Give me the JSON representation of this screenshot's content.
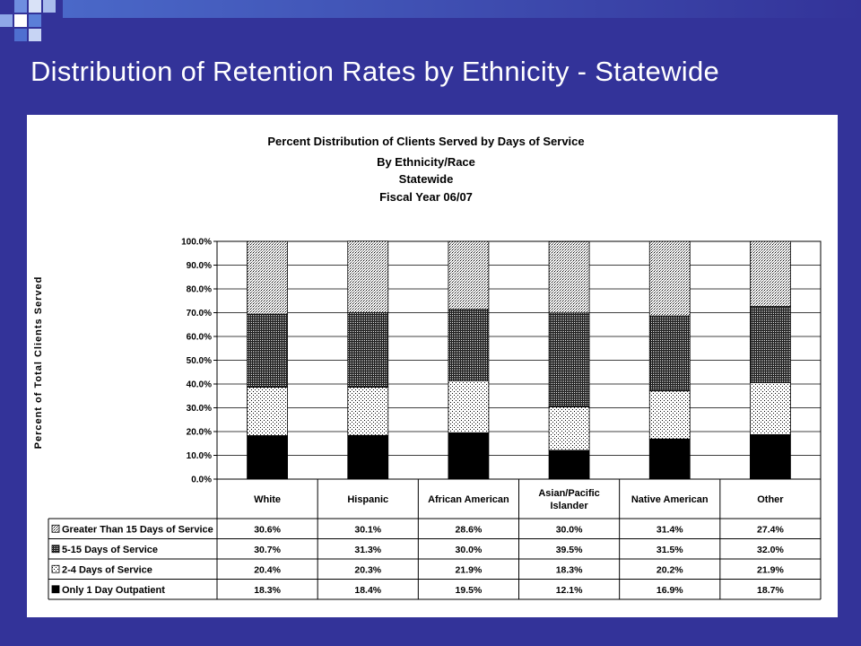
{
  "slide": {
    "title": "Distribution of Retention Rates by Ethnicity - Statewide",
    "colors": {
      "background": "#333399",
      "title_text": "#ffffff",
      "accent": "#5b7fd8"
    }
  },
  "chart_data": {
    "type": "bar",
    "stacked": true,
    "title": [
      "Percent Distribution of Clients Served by Days of Service",
      "By Ethnicity/Race",
      "Statewide",
      "Fiscal Year 06/07"
    ],
    "xlabel": "",
    "ylabel": "Percent of Total Clients Served",
    "ylim": [
      0,
      100
    ],
    "y_ticks": [
      "0.0%",
      "10.0%",
      "20.0%",
      "30.0%",
      "40.0%",
      "50.0%",
      "60.0%",
      "70.0%",
      "80.0%",
      "90.0%",
      "100.0%"
    ],
    "grid": true,
    "legend_placement": "data-table",
    "categories": [
      [
        "White"
      ],
      [
        "Hispanic"
      ],
      [
        "African American"
      ],
      [
        "Asian/Pacific",
        "Islander"
      ],
      [
        "Native American"
      ],
      [
        "Other"
      ]
    ],
    "series": [
      {
        "name": "Only 1 Day Outpatient",
        "pattern": "solid",
        "values": [
          18.3,
          18.4,
          19.5,
          12.1,
          16.9,
          18.7
        ],
        "labels": [
          "18.3%",
          "18.4%",
          "19.5%",
          "12.1%",
          "16.9%",
          "18.7%"
        ]
      },
      {
        "name": "2-4 Days of Service",
        "pattern": "sparse-dots",
        "values": [
          20.4,
          20.3,
          21.9,
          18.3,
          20.2,
          21.9
        ],
        "labels": [
          "20.4%",
          "20.3%",
          "21.9%",
          "18.3%",
          "20.2%",
          "21.9%"
        ]
      },
      {
        "name": "5-15 Days of Service",
        "pattern": "dense-dots",
        "values": [
          30.7,
          31.3,
          30.0,
          39.5,
          31.5,
          32.0
        ],
        "labels": [
          "30.7%",
          "31.3%",
          "30.0%",
          "39.5%",
          "31.5%",
          "32.0%"
        ]
      },
      {
        "name": "Greater Than 15 Days of Service",
        "pattern": "light-dots",
        "values": [
          30.6,
          30.1,
          28.6,
          30.0,
          31.4,
          27.4
        ],
        "labels": [
          "30.6%",
          "30.1%",
          "28.6%",
          "30.0%",
          "31.4%",
          "27.4%"
        ]
      }
    ],
    "table_row_order": [
      3,
      2,
      1,
      0
    ]
  }
}
